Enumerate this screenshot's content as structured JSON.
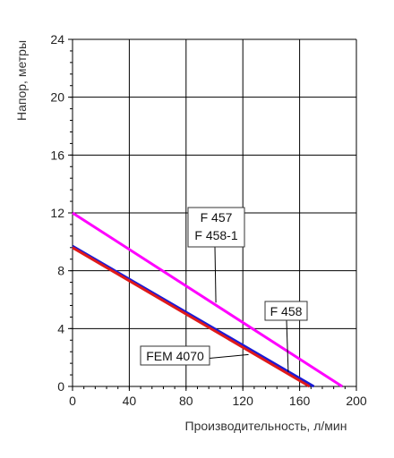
{
  "chart_data": {
    "type": "line",
    "xlabel": "Производительность, л/мин",
    "ylabel": "Напор, метры",
    "xlim": [
      0,
      200
    ],
    "ylim": [
      0,
      24
    ],
    "x_ticks": [
      "0",
      "40",
      "80",
      "120",
      "160",
      "200"
    ],
    "y_ticks": [
      "0",
      "4",
      "8",
      "12",
      "16",
      "20",
      "24"
    ],
    "grid": true,
    "series": [
      {
        "name": "F 457 / F 458-1",
        "color": "#ff00ff",
        "x": [
          0,
          190
        ],
        "y": [
          12,
          0
        ]
      },
      {
        "name": "F 458",
        "color": "#1a1ad6",
        "x": [
          0,
          170
        ],
        "y": [
          9.7,
          0
        ]
      },
      {
        "name": "FEM 4070",
        "color": "#e01a1a",
        "x": [
          0,
          167
        ],
        "y": [
          9.6,
          0
        ]
      }
    ],
    "annotations": [
      {
        "lines": [
          "F 457",
          "F 458-1"
        ],
        "target_x": 101,
        "target_y": 5.8
      },
      {
        "lines": [
          "F 458"
        ],
        "target_x": 152,
        "target_y": 1.0
      },
      {
        "lines": [
          "FEM 4070"
        ],
        "target_x": 124,
        "target_y": 2.2
      }
    ]
  }
}
